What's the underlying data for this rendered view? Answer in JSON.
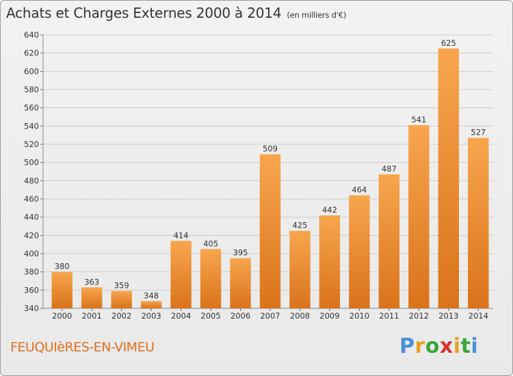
{
  "header": {
    "title": "Achats et Charges Externes 2000 à 2014",
    "unit": "(en milliers d'€)"
  },
  "footer": {
    "commune": "FEUQUIèRES-EN-VIMEU",
    "brand": "Proxiti"
  },
  "colors": {
    "bar_light": "#f7a64e",
    "bar_dark": "#d9731b",
    "grid": "#cccccc",
    "commune_text": "#e07020"
  },
  "chart_data": {
    "type": "bar",
    "title": "Achats et Charges Externes 2000 à 2014",
    "subtitle": "(en milliers d'€)",
    "categories": [
      "2000",
      "2001",
      "2002",
      "2003",
      "2004",
      "2005",
      "2006",
      "2007",
      "2008",
      "2009",
      "2010",
      "2011",
      "2012",
      "2013",
      "2014"
    ],
    "values": [
      380,
      363,
      359,
      348,
      414,
      405,
      395,
      509,
      425,
      442,
      464,
      487,
      541,
      625,
      527
    ],
    "ylim": [
      340,
      640
    ],
    "yticks": [
      340,
      360,
      380,
      400,
      420,
      440,
      460,
      480,
      500,
      520,
      540,
      560,
      580,
      600,
      620,
      640
    ],
    "grid": true,
    "legend": "none"
  }
}
